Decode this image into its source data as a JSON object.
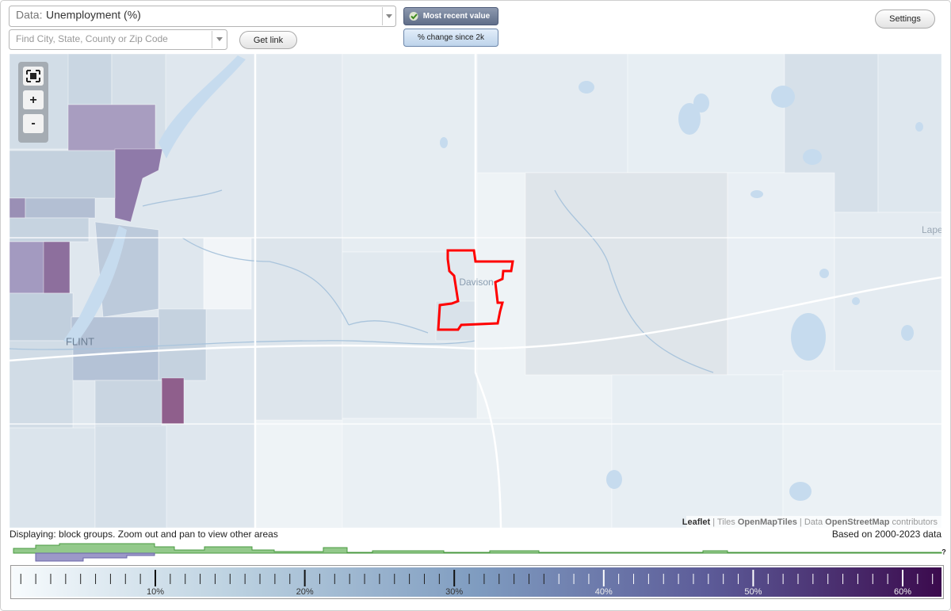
{
  "controls": {
    "data_label": "Data:",
    "data_value": "Unemployment (%)",
    "search_placeholder": "Find City, State, County or Zip Code",
    "get_link": "Get link",
    "mode_recent": "Most recent value",
    "mode_change": "% change since 2k",
    "settings": "Settings",
    "zoom_in": "+",
    "zoom_out": "-"
  },
  "map": {
    "labels": [
      "Davison",
      "FLINT",
      "Lape"
    ],
    "attribution": {
      "leaflet": "Leaflet",
      "separator": "|",
      "tiles": "Tiles",
      "tiles_source": "OpenMapTiles",
      "data": "Data",
      "data_source": "OpenStreetMap",
      "contributors": "contributors"
    }
  },
  "status": {
    "displaying": "Displaying: block groups. Zoom out and pan to view other areas",
    "based_on": "Based on 2000-2023 data",
    "help": "?"
  },
  "legend": {
    "ticks": [
      {
        "value": 10,
        "label": "10%"
      },
      {
        "value": 20,
        "label": "20%"
      },
      {
        "value": 30,
        "label": "30%"
      },
      {
        "value": 40,
        "label": "40%"
      },
      {
        "value": 50,
        "label": "50%"
      },
      {
        "value": 60,
        "label": "60%"
      }
    ]
  }
}
